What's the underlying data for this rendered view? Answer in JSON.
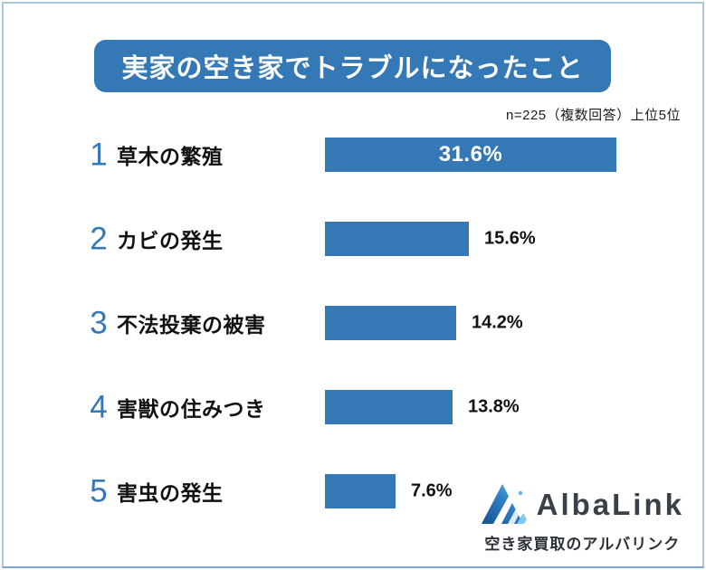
{
  "title": {
    "text": "実家の空き家でトラブルになったこと",
    "bg_color": "#3478b5",
    "text_color": "#ffffff"
  },
  "note": "n=225（複数回答）上位5位",
  "chart_data": {
    "type": "bar",
    "orientation": "horizontal",
    "title": "実家の空き家でトラブルになったこと",
    "note": "n=225（複数回答）上位5位",
    "ranks": [
      "1",
      "2",
      "3",
      "4",
      "5"
    ],
    "categories": [
      "草木の繁殖",
      "カビの発生",
      "不法投棄の被害",
      "害獣の住みつき",
      "害虫の発生"
    ],
    "values": [
      31.6,
      15.6,
      14.2,
      13.8,
      7.6
    ],
    "value_labels": [
      "31.6%",
      "15.6%",
      "14.2%",
      "13.8%",
      "7.6%"
    ],
    "label_placement": [
      "inside",
      "outside",
      "outside",
      "outside",
      "outside"
    ],
    "bar_color": "#3478b5",
    "xlim": [
      0,
      33
    ],
    "grid": false,
    "legend": false
  },
  "logo": {
    "name": "AlbaLink",
    "tagline": "空き家買取のアルバリンク",
    "icon": "albalink-mountain-logo-icon",
    "icon_colors": [
      "#17518f",
      "#2e7fc2",
      "#5bb8ea"
    ],
    "text_color": "#3a4048"
  },
  "frame": {
    "border_color": "#a9c6de"
  }
}
